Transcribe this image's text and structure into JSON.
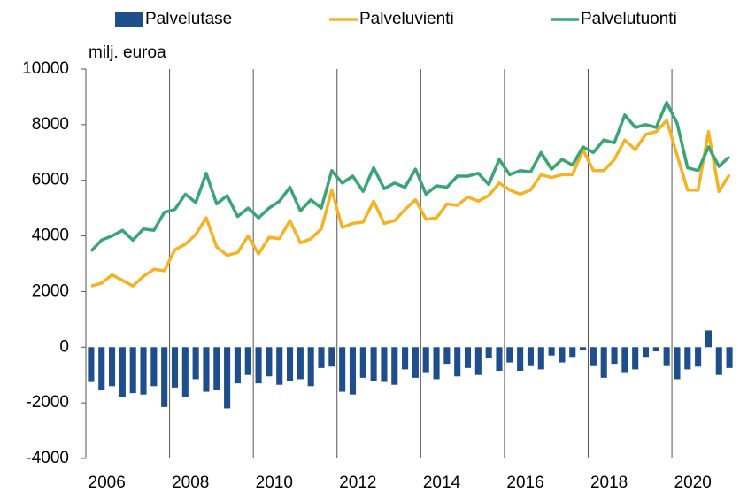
{
  "chart_data": {
    "type": "bar-line",
    "y_label": "milj. euroa",
    "categories": [
      null,
      null,
      "2006",
      null,
      null,
      null,
      null,
      null,
      null,
      null,
      "2008",
      null,
      null,
      null,
      null,
      null,
      null,
      null,
      "2010",
      null,
      null,
      null,
      null,
      null,
      null,
      null,
      "2012",
      null,
      null,
      null,
      null,
      null,
      null,
      null,
      "2014",
      null,
      null,
      null,
      null,
      null,
      null,
      null,
      "2016",
      null,
      null,
      null,
      null,
      null,
      null,
      null,
      "2018",
      null,
      null,
      null,
      null,
      null,
      null,
      null,
      "2020",
      null,
      null,
      null
    ],
    "series": [
      {
        "name": "Palvelutase",
        "type": "bar",
        "color": "#1f4e8c",
        "values": [
          -1250,
          -1550,
          -1400,
          -1800,
          -1650,
          -1700,
          -1400,
          -2150,
          -1450,
          -1800,
          -1150,
          -1600,
          -1550,
          -2200,
          -1300,
          -1000,
          -1300,
          -1050,
          -1350,
          -1200,
          -1150,
          -1400,
          -750,
          -700,
          -1600,
          -1700,
          -1100,
          -1200,
          -1250,
          -1350,
          -800,
          -1100,
          -900,
          -1150,
          -600,
          -1050,
          -750,
          -1000,
          -400,
          -850,
          -550,
          -850,
          -650,
          -800,
          -300,
          -550,
          -350,
          -100,
          -650,
          -1100,
          -600,
          -900,
          -800,
          -350,
          -150,
          -650,
          -1150,
          -800,
          -700,
          600,
          -1000,
          -750
        ]
      },
      {
        "name": "Palveluvienti",
        "type": "line",
        "color": "#f5b324",
        "values": [
          2200,
          2300,
          2600,
          2400,
          2200,
          2550,
          2800,
          2750,
          3500,
          3700,
          4050,
          4650,
          3600,
          3300,
          3400,
          4000,
          3350,
          3950,
          3900,
          4550,
          3750,
          3900,
          4250,
          5650,
          4300,
          4450,
          4500,
          5250,
          4450,
          4550,
          4950,
          5300,
          4600,
          4650,
          5150,
          5100,
          5400,
          5250,
          5450,
          5900,
          5650,
          5500,
          5650,
          6200,
          6100,
          6200,
          6200,
          7100,
          6350,
          6350,
          6750,
          7450,
          7100,
          7650,
          7750,
          8150,
          6900,
          5650,
          5650,
          7750,
          5600,
          6200
        ]
      },
      {
        "name": "Palvelutuonti",
        "type": "line",
        "color": "#3aa574",
        "values": [
          3450,
          3850,
          4000,
          4200,
          3850,
          4250,
          4200,
          4850,
          4950,
          5500,
          5200,
          6250,
          5150,
          5450,
          4700,
          5000,
          4650,
          5000,
          5250,
          5750,
          4900,
          5300,
          5000,
          6350,
          5900,
          6150,
          5600,
          6450,
          5700,
          5900,
          5750,
          6400,
          5500,
          5800,
          5750,
          6150,
          6150,
          6250,
          5850,
          6750,
          6200,
          6350,
          6300,
          7000,
          6400,
          6750,
          6550,
          7200,
          7000,
          7450,
          7350,
          8350,
          7900,
          8000,
          7900,
          8800,
          8050,
          6450,
          6350,
          7200,
          6500,
          6850
        ]
      }
    ],
    "ylim": [
      -4000,
      10000
    ],
    "yticks": [
      -4000,
      -2000,
      0,
      2000,
      4000,
      6000,
      8000,
      10000
    ],
    "grid": "x",
    "legend": "top"
  }
}
